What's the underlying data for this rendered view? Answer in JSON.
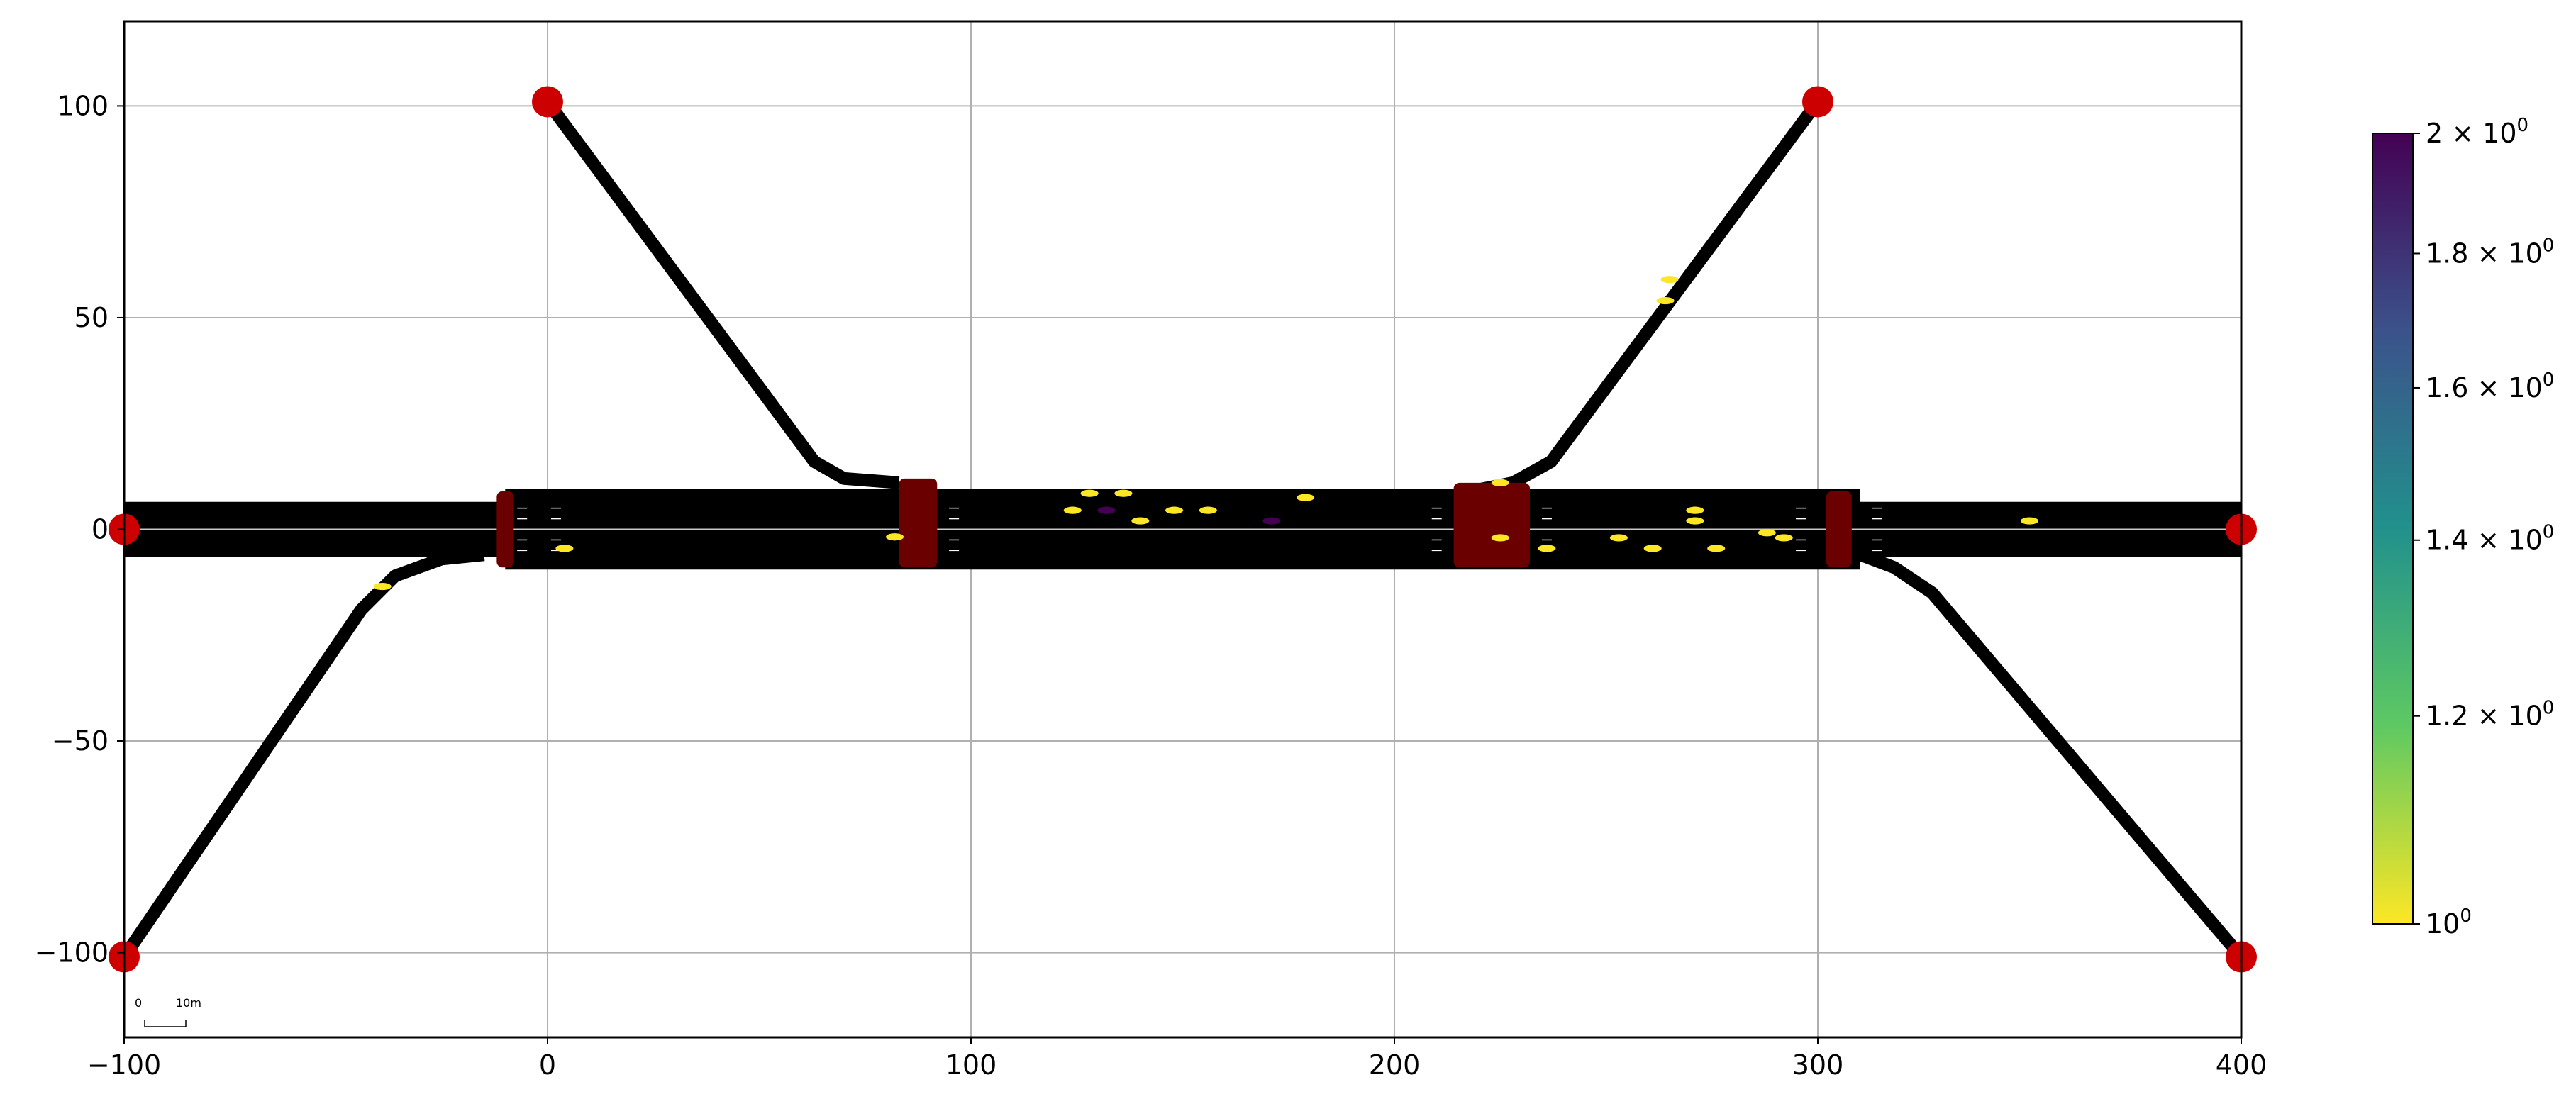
{
  "chart_data": {
    "type": "scatter",
    "title": "",
    "xlabel": "",
    "ylabel": "",
    "xlim": [
      -100,
      400
    ],
    "ylim": [
      -120,
      120
    ],
    "grid": true,
    "x_ticks": [
      "−100",
      "0",
      "100",
      "200",
      "300",
      "400"
    ],
    "x_tick_values": [
      -100,
      0,
      100,
      200,
      300,
      400
    ],
    "y_ticks": [
      "−100",
      "−50",
      "0",
      "50",
      "100"
    ],
    "y_tick_values": [
      -100,
      -50,
      0,
      50,
      100
    ],
    "colormap": "viridis_r",
    "colorbar": {
      "scale": "log",
      "range": [
        1,
        2
      ],
      "ticks": [
        {
          "value": 2.0,
          "mantissa": "2",
          "base": "10",
          "exp": "0"
        },
        {
          "value": 1.8,
          "mantissa": "1.8",
          "base": "10",
          "exp": "0"
        },
        {
          "value": 1.6,
          "mantissa": "1.6",
          "base": "10",
          "exp": "0"
        },
        {
          "value": 1.4,
          "mantissa": "1.4",
          "base": "10",
          "exp": "0"
        },
        {
          "value": 1.2,
          "mantissa": "1.2",
          "base": "10",
          "exp": "0"
        },
        {
          "value": 1.0,
          "mantissa": "",
          "base": "10",
          "exp": "0"
        }
      ]
    },
    "scale_bar": {
      "zero": "0",
      "label": "10m"
    },
    "colors": {
      "road": "#000000",
      "junction": "#6b0000",
      "endpoint": "#cc0000",
      "vehicle_low": "#fde725",
      "vehicle_high": "#440154",
      "grid": "#b0b0b0"
    },
    "roads": [
      {
        "name": "main",
        "points": [
          [
            -100,
            0
          ],
          [
            400,
            0
          ]
        ],
        "width": 13
      },
      {
        "name": "north-west",
        "points": [
          [
            0,
            101
          ],
          [
            63,
            16
          ],
          [
            70,
            12
          ],
          [
            83,
            11
          ]
        ],
        "width": 3
      },
      {
        "name": "north-east",
        "points": [
          [
            300,
            101
          ],
          [
            237,
            16
          ],
          [
            228,
            11
          ],
          [
            218,
            9
          ]
        ],
        "width": 3
      },
      {
        "name": "south-west",
        "points": [
          [
            -100,
            -101
          ],
          [
            -44,
            -19
          ],
          [
            -36,
            -11
          ],
          [
            -25,
            -7
          ],
          [
            -15,
            -6
          ]
        ],
        "width": 3
      },
      {
        "name": "south-east",
        "points": [
          [
            400,
            -101
          ],
          [
            327,
            -15
          ],
          [
            318,
            -9
          ],
          [
            310,
            -6
          ]
        ],
        "width": 3
      },
      {
        "name": "middle",
        "points": [
          [
            -10,
            0
          ],
          [
            310,
            0
          ]
        ],
        "width": 19
      }
    ],
    "junctions": [
      {
        "x": [
          -12,
          -8
        ],
        "y": [
          -9,
          9
        ]
      },
      {
        "x": [
          83,
          92
        ],
        "y": [
          -9,
          12
        ]
      },
      {
        "x": [
          214,
          232
        ],
        "y": [
          -9,
          11
        ]
      },
      {
        "x": [
          302,
          308
        ],
        "y": [
          -9,
          9
        ]
      }
    ],
    "endpoints": [
      {
        "x": 0,
        "y": 101
      },
      {
        "x": 300,
        "y": 101
      },
      {
        "x": -100,
        "y": 0
      },
      {
        "x": 400,
        "y": 0
      },
      {
        "x": -100,
        "y": -101
      },
      {
        "x": 400,
        "y": -101
      }
    ],
    "vehicles": [
      {
        "x": 4,
        "y": -4.5,
        "value": 1
      },
      {
        "x": -39,
        "y": -13.5,
        "value": 1
      },
      {
        "x": 82,
        "y": -1.8,
        "value": 1
      },
      {
        "x": 128,
        "y": 8.5,
        "value": 1
      },
      {
        "x": 136,
        "y": 8.5,
        "value": 1
      },
      {
        "x": 124,
        "y": 4.5,
        "value": 1
      },
      {
        "x": 132,
        "y": 4.5,
        "value": 2
      },
      {
        "x": 140,
        "y": 2,
        "value": 1
      },
      {
        "x": 148,
        "y": 4.5,
        "value": 1
      },
      {
        "x": 156,
        "y": 4.5,
        "value": 1
      },
      {
        "x": 171,
        "y": 2,
        "value": 2
      },
      {
        "x": 179,
        "y": 7.5,
        "value": 1
      },
      {
        "x": 225,
        "y": 11,
        "value": 1
      },
      {
        "x": 225,
        "y": -2,
        "value": 1
      },
      {
        "x": 236,
        "y": -4.5,
        "value": 1
      },
      {
        "x": 253,
        "y": -2,
        "value": 1
      },
      {
        "x": 261,
        "y": -4.5,
        "value": 1
      },
      {
        "x": 271,
        "y": 4.5,
        "value": 1
      },
      {
        "x": 271,
        "y": 2,
        "value": 1
      },
      {
        "x": 276,
        "y": -4.5,
        "value": 1
      },
      {
        "x": 288,
        "y": -0.8,
        "value": 1
      },
      {
        "x": 292,
        "y": -2,
        "value": 1
      },
      {
        "x": 265,
        "y": 59,
        "value": 1
      },
      {
        "x": 264,
        "y": 54,
        "value": 1
      },
      {
        "x": 350,
        "y": 2,
        "value": 1
      }
    ]
  }
}
